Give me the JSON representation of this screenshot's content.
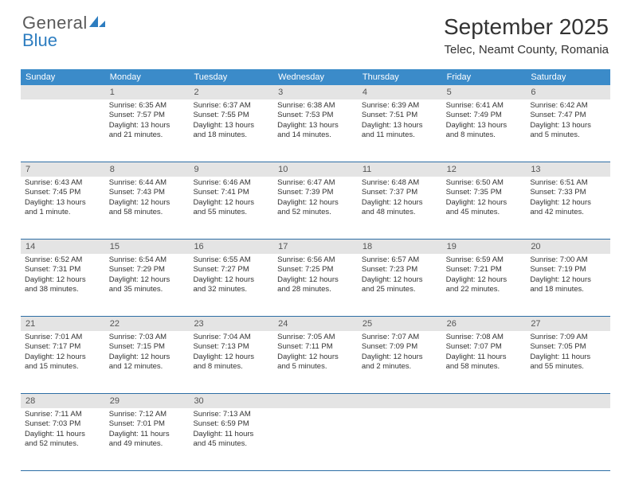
{
  "logo": {
    "general": "General",
    "blue": "Blue"
  },
  "title": "September 2025",
  "location": "Telec, Neamt County, Romania",
  "colors": {
    "header_bg": "#3b8bc9",
    "header_text": "#ffffff",
    "daynum_bg": "#e4e4e4",
    "daynum_text": "#555555",
    "cell_text": "#333333",
    "row_border": "#2d6ea5",
    "logo_gray": "#5a5a5a",
    "logo_blue": "#2d7dc0",
    "page_bg": "#ffffff"
  },
  "fonts": {
    "title_size_pt": 28,
    "location_size_pt": 15,
    "dayhead_size_pt": 11,
    "daynum_size_pt": 11,
    "cell_size_pt": 9.5,
    "logo_size_pt": 22
  },
  "day_headers": [
    "Sunday",
    "Monday",
    "Tuesday",
    "Wednesday",
    "Thursday",
    "Friday",
    "Saturday"
  ],
  "weeks": [
    {
      "nums": [
        "",
        "1",
        "2",
        "3",
        "4",
        "5",
        "6"
      ],
      "cells": [
        null,
        {
          "sunrise": "Sunrise: 6:35 AM",
          "sunset": "Sunset: 7:57 PM",
          "d1": "Daylight: 13 hours",
          "d2": "and 21 minutes."
        },
        {
          "sunrise": "Sunrise: 6:37 AM",
          "sunset": "Sunset: 7:55 PM",
          "d1": "Daylight: 13 hours",
          "d2": "and 18 minutes."
        },
        {
          "sunrise": "Sunrise: 6:38 AM",
          "sunset": "Sunset: 7:53 PM",
          "d1": "Daylight: 13 hours",
          "d2": "and 14 minutes."
        },
        {
          "sunrise": "Sunrise: 6:39 AM",
          "sunset": "Sunset: 7:51 PM",
          "d1": "Daylight: 13 hours",
          "d2": "and 11 minutes."
        },
        {
          "sunrise": "Sunrise: 6:41 AM",
          "sunset": "Sunset: 7:49 PM",
          "d1": "Daylight: 13 hours",
          "d2": "and 8 minutes."
        },
        {
          "sunrise": "Sunrise: 6:42 AM",
          "sunset": "Sunset: 7:47 PM",
          "d1": "Daylight: 13 hours",
          "d2": "and 5 minutes."
        }
      ]
    },
    {
      "nums": [
        "7",
        "8",
        "9",
        "10",
        "11",
        "12",
        "13"
      ],
      "cells": [
        {
          "sunrise": "Sunrise: 6:43 AM",
          "sunset": "Sunset: 7:45 PM",
          "d1": "Daylight: 13 hours",
          "d2": "and 1 minute."
        },
        {
          "sunrise": "Sunrise: 6:44 AM",
          "sunset": "Sunset: 7:43 PM",
          "d1": "Daylight: 12 hours",
          "d2": "and 58 minutes."
        },
        {
          "sunrise": "Sunrise: 6:46 AM",
          "sunset": "Sunset: 7:41 PM",
          "d1": "Daylight: 12 hours",
          "d2": "and 55 minutes."
        },
        {
          "sunrise": "Sunrise: 6:47 AM",
          "sunset": "Sunset: 7:39 PM",
          "d1": "Daylight: 12 hours",
          "d2": "and 52 minutes."
        },
        {
          "sunrise": "Sunrise: 6:48 AM",
          "sunset": "Sunset: 7:37 PM",
          "d1": "Daylight: 12 hours",
          "d2": "and 48 minutes."
        },
        {
          "sunrise": "Sunrise: 6:50 AM",
          "sunset": "Sunset: 7:35 PM",
          "d1": "Daylight: 12 hours",
          "d2": "and 45 minutes."
        },
        {
          "sunrise": "Sunrise: 6:51 AM",
          "sunset": "Sunset: 7:33 PM",
          "d1": "Daylight: 12 hours",
          "d2": "and 42 minutes."
        }
      ]
    },
    {
      "nums": [
        "14",
        "15",
        "16",
        "17",
        "18",
        "19",
        "20"
      ],
      "cells": [
        {
          "sunrise": "Sunrise: 6:52 AM",
          "sunset": "Sunset: 7:31 PM",
          "d1": "Daylight: 12 hours",
          "d2": "and 38 minutes."
        },
        {
          "sunrise": "Sunrise: 6:54 AM",
          "sunset": "Sunset: 7:29 PM",
          "d1": "Daylight: 12 hours",
          "d2": "and 35 minutes."
        },
        {
          "sunrise": "Sunrise: 6:55 AM",
          "sunset": "Sunset: 7:27 PM",
          "d1": "Daylight: 12 hours",
          "d2": "and 32 minutes."
        },
        {
          "sunrise": "Sunrise: 6:56 AM",
          "sunset": "Sunset: 7:25 PM",
          "d1": "Daylight: 12 hours",
          "d2": "and 28 minutes."
        },
        {
          "sunrise": "Sunrise: 6:57 AM",
          "sunset": "Sunset: 7:23 PM",
          "d1": "Daylight: 12 hours",
          "d2": "and 25 minutes."
        },
        {
          "sunrise": "Sunrise: 6:59 AM",
          "sunset": "Sunset: 7:21 PM",
          "d1": "Daylight: 12 hours",
          "d2": "and 22 minutes."
        },
        {
          "sunrise": "Sunrise: 7:00 AM",
          "sunset": "Sunset: 7:19 PM",
          "d1": "Daylight: 12 hours",
          "d2": "and 18 minutes."
        }
      ]
    },
    {
      "nums": [
        "21",
        "22",
        "23",
        "24",
        "25",
        "26",
        "27"
      ],
      "cells": [
        {
          "sunrise": "Sunrise: 7:01 AM",
          "sunset": "Sunset: 7:17 PM",
          "d1": "Daylight: 12 hours",
          "d2": "and 15 minutes."
        },
        {
          "sunrise": "Sunrise: 7:03 AM",
          "sunset": "Sunset: 7:15 PM",
          "d1": "Daylight: 12 hours",
          "d2": "and 12 minutes."
        },
        {
          "sunrise": "Sunrise: 7:04 AM",
          "sunset": "Sunset: 7:13 PM",
          "d1": "Daylight: 12 hours",
          "d2": "and 8 minutes."
        },
        {
          "sunrise": "Sunrise: 7:05 AM",
          "sunset": "Sunset: 7:11 PM",
          "d1": "Daylight: 12 hours",
          "d2": "and 5 minutes."
        },
        {
          "sunrise": "Sunrise: 7:07 AM",
          "sunset": "Sunset: 7:09 PM",
          "d1": "Daylight: 12 hours",
          "d2": "and 2 minutes."
        },
        {
          "sunrise": "Sunrise: 7:08 AM",
          "sunset": "Sunset: 7:07 PM",
          "d1": "Daylight: 11 hours",
          "d2": "and 58 minutes."
        },
        {
          "sunrise": "Sunrise: 7:09 AM",
          "sunset": "Sunset: 7:05 PM",
          "d1": "Daylight: 11 hours",
          "d2": "and 55 minutes."
        }
      ]
    },
    {
      "nums": [
        "28",
        "29",
        "30",
        "",
        "",
        "",
        ""
      ],
      "cells": [
        {
          "sunrise": "Sunrise: 7:11 AM",
          "sunset": "Sunset: 7:03 PM",
          "d1": "Daylight: 11 hours",
          "d2": "and 52 minutes."
        },
        {
          "sunrise": "Sunrise: 7:12 AM",
          "sunset": "Sunset: 7:01 PM",
          "d1": "Daylight: 11 hours",
          "d2": "and 49 minutes."
        },
        {
          "sunrise": "Sunrise: 7:13 AM",
          "sunset": "Sunset: 6:59 PM",
          "d1": "Daylight: 11 hours",
          "d2": "and 45 minutes."
        },
        null,
        null,
        null,
        null
      ]
    }
  ]
}
